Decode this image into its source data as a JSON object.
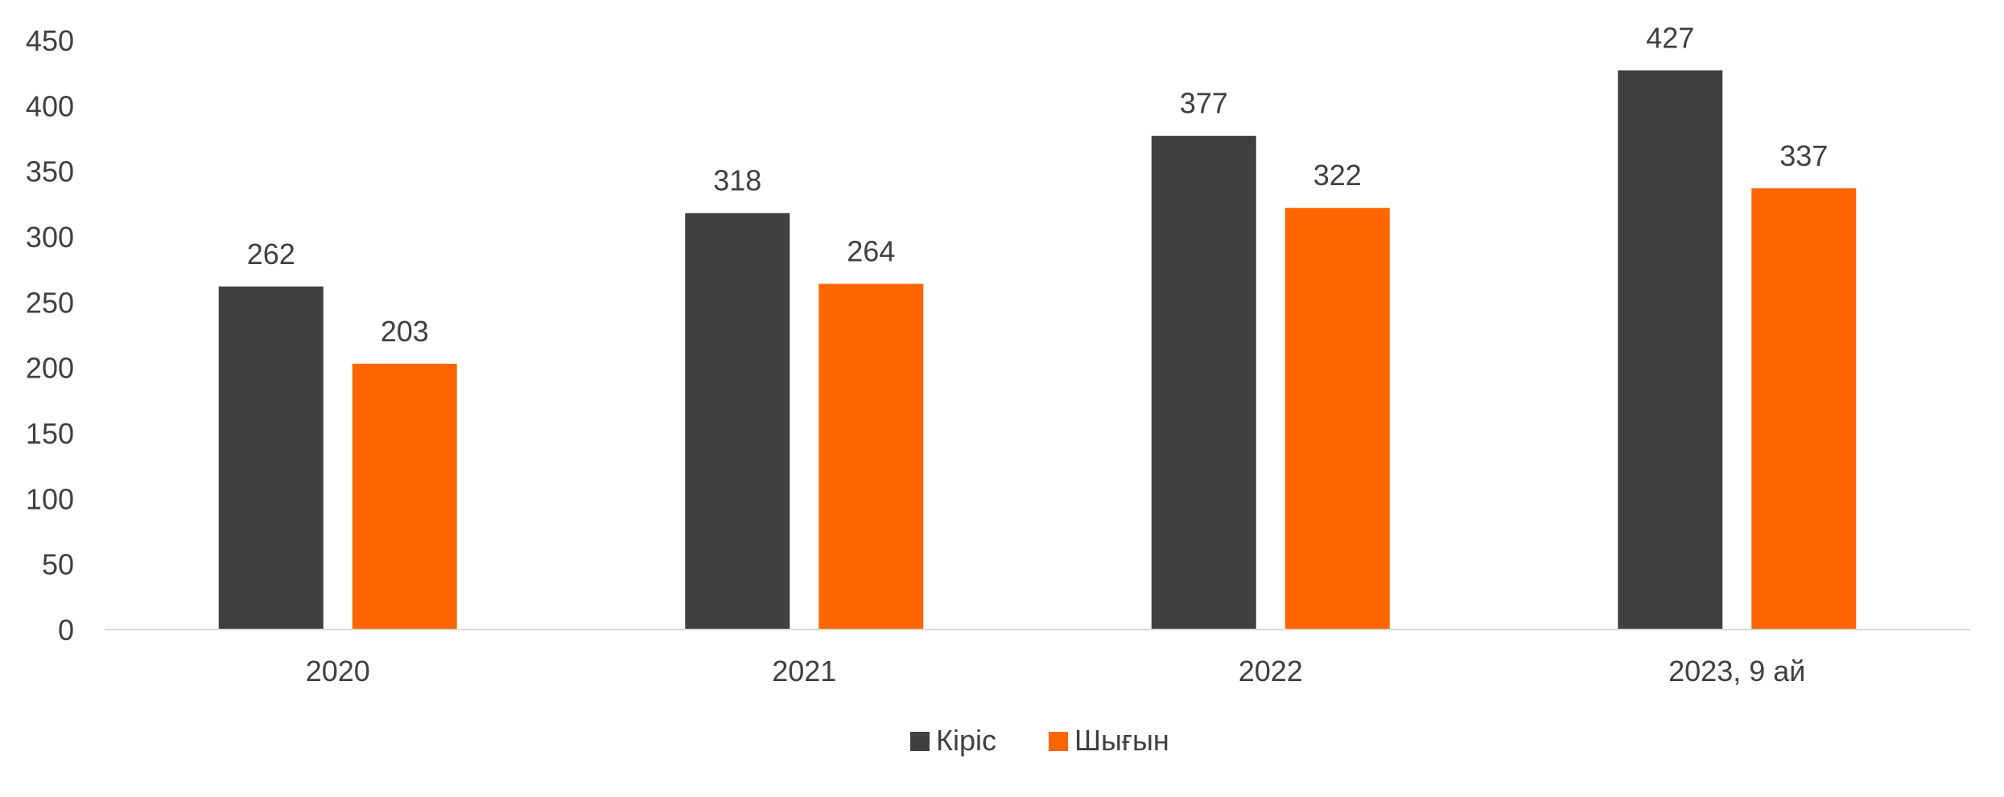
{
  "chart_data": {
    "type": "bar",
    "categories": [
      "2020",
      "2021",
      "2022",
      "2023, 9 ай"
    ],
    "series": [
      {
        "name": "Кіріс",
        "values": [
          262,
          318,
          377,
          427
        ],
        "color": "#404040"
      },
      {
        "name": "Шығын",
        "values": [
          203,
          264,
          322,
          337
        ],
        "color": "#FF6600"
      }
    ],
    "title": "",
    "xlabel": "",
    "ylabel": "",
    "ylim": [
      0,
      450
    ],
    "yticks": [
      0,
      50,
      100,
      150,
      200,
      250,
      300,
      350,
      400,
      450
    ],
    "grid": false,
    "legend": "bottom-center",
    "axis_color": "#D9D9D9",
    "text_color": "#404040"
  }
}
